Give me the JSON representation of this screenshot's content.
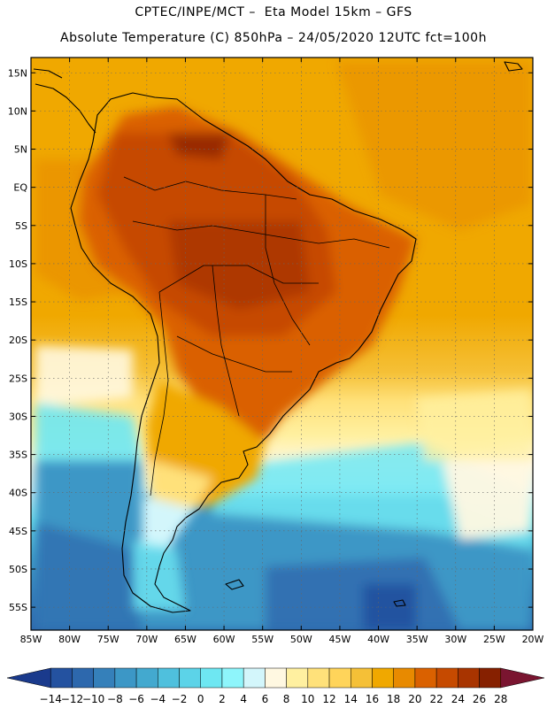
{
  "header": {
    "line1": "CPTEC/INPE/MCT –  Eta Model 15km – GFS",
    "line2": "Absolute Temperature (C) 850hPa – 24/05/2020 12UTC fct=100h"
  },
  "map": {
    "lon_range": [
      -85,
      -20
    ],
    "lat_range": [
      -58,
      17
    ],
    "grid": "dotted",
    "lat_ticks": [
      {
        "value": 15,
        "label": "15N"
      },
      {
        "value": 10,
        "label": "10N"
      },
      {
        "value": 5,
        "label": "5N"
      },
      {
        "value": 0,
        "label": "EQ"
      },
      {
        "value": -5,
        "label": "5S"
      },
      {
        "value": -10,
        "label": "10S"
      },
      {
        "value": -15,
        "label": "15S"
      },
      {
        "value": -20,
        "label": "20S"
      },
      {
        "value": -25,
        "label": "25S"
      },
      {
        "value": -30,
        "label": "30S"
      },
      {
        "value": -35,
        "label": "35S"
      },
      {
        "value": -40,
        "label": "40S"
      },
      {
        "value": -45,
        "label": "45S"
      },
      {
        "value": -50,
        "label": "50S"
      },
      {
        "value": -55,
        "label": "55S"
      }
    ],
    "lon_ticks": [
      {
        "value": -85,
        "label": "85W"
      },
      {
        "value": -80,
        "label": "80W"
      },
      {
        "value": -75,
        "label": "75W"
      },
      {
        "value": -70,
        "label": "70W"
      },
      {
        "value": -65,
        "label": "65W"
      },
      {
        "value": -60,
        "label": "60W"
      },
      {
        "value": -55,
        "label": "55W"
      },
      {
        "value": -50,
        "label": "50W"
      },
      {
        "value": -45,
        "label": "45W"
      },
      {
        "value": -40,
        "label": "40W"
      },
      {
        "value": -35,
        "label": "35W"
      },
      {
        "value": -30,
        "label": "30W"
      },
      {
        "value": -25,
        "label": "25W"
      },
      {
        "value": -20,
        "label": "20W"
      }
    ]
  },
  "colorbar": {
    "labels": [
      "-14",
      "-12",
      "-10",
      "-8",
      "-6",
      "-4",
      "-2",
      "0",
      "2",
      "4",
      "6",
      "8",
      "10",
      "12",
      "14",
      "16",
      "18",
      "20",
      "22",
      "24",
      "26",
      "28"
    ],
    "colors": [
      "#1a3a8c",
      "#2452a0",
      "#2d68ad",
      "#3580ba",
      "#3c97c6",
      "#43a9cf",
      "#4fc0dd",
      "#5cd3e8",
      "#6ee7f2",
      "#8ef5fb",
      "#d3f6fb",
      "#fff8e1",
      "#fff0a0",
      "#ffe17a",
      "#ffd45a",
      "#f5c037",
      "#f0a800",
      "#e88a00",
      "#da6100",
      "#c64a00",
      "#a83400",
      "#862000",
      "#7a1530"
    ]
  }
}
